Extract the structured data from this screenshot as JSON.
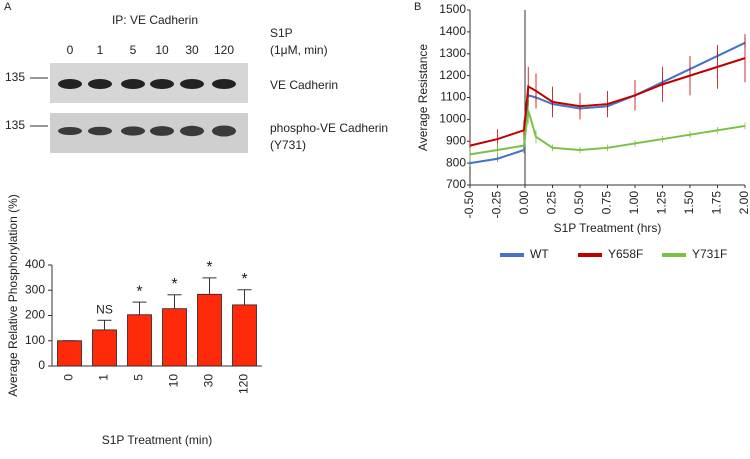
{
  "panels": {
    "a": "A",
    "b": "B"
  },
  "blot": {
    "ip": "IP: VE Cadherin",
    "treatment": "S1P",
    "treatment_unit": "(1μM, min)",
    "lanes": [
      "0",
      "1",
      "5",
      "10",
      "30",
      "120"
    ],
    "marker_1": "135",
    "marker_2": "135",
    "band_1": "VE Cadherin",
    "band_2": "phospho-VE Cadherin",
    "band_2_site": "(Y731)"
  },
  "chart_data": [
    {
      "type": "bar",
      "ylabel": "Average Relative Phosphorylation (%)",
      "xlabel": "S1P Treatment (min)",
      "categories": [
        "0",
        "1",
        "5",
        "10",
        "30",
        "120"
      ],
      "values": [
        100,
        143,
        203,
        227,
        284,
        242
      ],
      "errors": [
        0,
        38,
        50,
        55,
        65,
        60
      ],
      "annotations": [
        null,
        "NS",
        "*",
        "*",
        "*",
        "*"
      ],
      "color": "#ff2a0a",
      "ylim": [
        0,
        400
      ],
      "yticks": [
        0,
        100,
        200,
        300,
        400
      ]
    },
    {
      "type": "line",
      "ylabel": "Average Resistance",
      "xlabel": "S1P Treatment (hrs)",
      "x": [
        -0.5,
        -0.25,
        -0.01,
        0.03,
        0.1,
        0.25,
        0.5,
        0.75,
        1.0,
        1.25,
        1.5,
        1.75,
        2.0
      ],
      "series": [
        {
          "name": "WT",
          "color": "#4472c4",
          "values": [
            800,
            820,
            860,
            1110,
            1100,
            1070,
            1050,
            1060,
            1110,
            1170,
            1230,
            1290,
            1350
          ],
          "errors": [
            15,
            15,
            15,
            30,
            20,
            15,
            15,
            15,
            15,
            20,
            20,
            20,
            25
          ]
        },
        {
          "name": "Y658F",
          "color": "#c00000",
          "values": [
            880,
            910,
            950,
            1150,
            1130,
            1080,
            1060,
            1070,
            1110,
            1160,
            1200,
            1240,
            1280
          ],
          "errors": [
            40,
            45,
            45,
            90,
            80,
            70,
            60,
            60,
            70,
            80,
            90,
            100,
            110
          ]
        },
        {
          "name": "Y731F",
          "color": "#7ac143",
          "values": [
            840,
            860,
            880,
            1040,
            920,
            870,
            860,
            870,
            890,
            910,
            930,
            950,
            970
          ],
          "errors": [
            30,
            30,
            30,
            60,
            30,
            15,
            15,
            15,
            15,
            15,
            15,
            15,
            15
          ]
        }
      ],
      "xlim": [
        -0.5,
        2.0
      ],
      "xticks": [
        {
          "value": -0.5,
          "label": "-0.50"
        },
        {
          "value": -0.25,
          "label": "-0.25"
        },
        {
          "value": 0,
          "label": "0.00"
        },
        {
          "value": 0.25,
          "label": "0.25"
        },
        {
          "value": 0.5,
          "label": "0.50"
        },
        {
          "value": 0.75,
          "label": "0.75"
        },
        {
          "value": 1.0,
          "label": "1.00"
        },
        {
          "value": 1.25,
          "label": "1.25"
        },
        {
          "value": 1.5,
          "label": "1.50"
        },
        {
          "value": 1.75,
          "label": "1.75"
        },
        {
          "value": 2.0,
          "label": "2.00"
        }
      ],
      "ylim": [
        700,
        1500
      ],
      "yticks": [
        700,
        800,
        900,
        1000,
        1100,
        1200,
        1300,
        1400,
        1500
      ],
      "legend": "bottom"
    }
  ]
}
